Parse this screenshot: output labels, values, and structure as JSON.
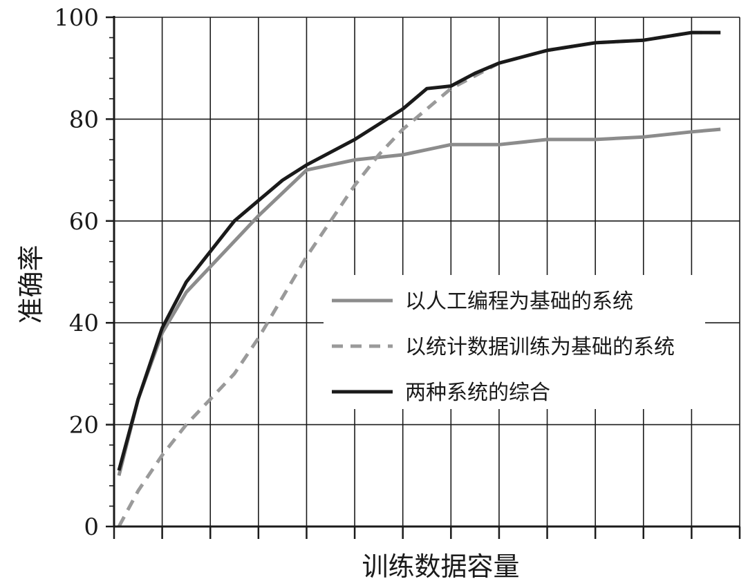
{
  "chart_data": {
    "type": "line",
    "xlabel": "训练数据容量",
    "ylabel": "准确率",
    "ylim": [
      0,
      100
    ],
    "yticks": [
      0,
      20,
      40,
      60,
      80,
      100
    ],
    "xlim": [
      0,
      13
    ],
    "x_tick_count": 13,
    "grid": true,
    "legend_position": "center-right",
    "series": [
      {
        "name": "以人工编程为基础的系统",
        "style": "solid",
        "color": "#8c8c8c",
        "x": [
          0.1,
          0.5,
          1.0,
          1.5,
          2.0,
          3.0,
          4.0,
          5.0,
          6.0,
          7.0,
          8.0,
          9.0,
          10.0,
          11.0,
          12.0,
          12.6
        ],
        "y": [
          10,
          25,
          38,
          46,
          51,
          61,
          70,
          72,
          73,
          75,
          75,
          76,
          76,
          76.5,
          77.5,
          78
        ]
      },
      {
        "name": "以统计数据训练为基础的系统",
        "style": "dashed",
        "color": "#9a9a9a",
        "x": [
          0.1,
          0.5,
          1.0,
          1.5,
          2.0,
          2.5,
          3.0,
          3.5,
          4.0,
          4.5,
          5.0,
          5.5,
          6.0,
          6.5,
          7.0,
          8.0,
          9.0,
          10.0,
          11.0,
          12.0,
          12.6
        ],
        "y": [
          0,
          7,
          14,
          20,
          25,
          30,
          37,
          45,
          53,
          60,
          67,
          73,
          78,
          82,
          86,
          91,
          93.5,
          95,
          95.5,
          97,
          97
        ]
      },
      {
        "name": "两种系统的综合",
        "style": "solid",
        "color": "#1a1a1a",
        "x": [
          0.1,
          0.5,
          1.0,
          1.5,
          2.0,
          2.5,
          3.0,
          3.5,
          4.0,
          5.0,
          5.5,
          6.0,
          6.5,
          7.0,
          7.5,
          8.0,
          9.0,
          10.0,
          11.0,
          12.0,
          12.6
        ],
        "y": [
          11,
          25,
          39,
          48,
          54,
          60,
          64,
          68,
          71,
          76,
          79,
          82,
          86,
          86.5,
          89,
          91,
          93.5,
          95,
          95.5,
          97,
          97
        ]
      }
    ]
  }
}
